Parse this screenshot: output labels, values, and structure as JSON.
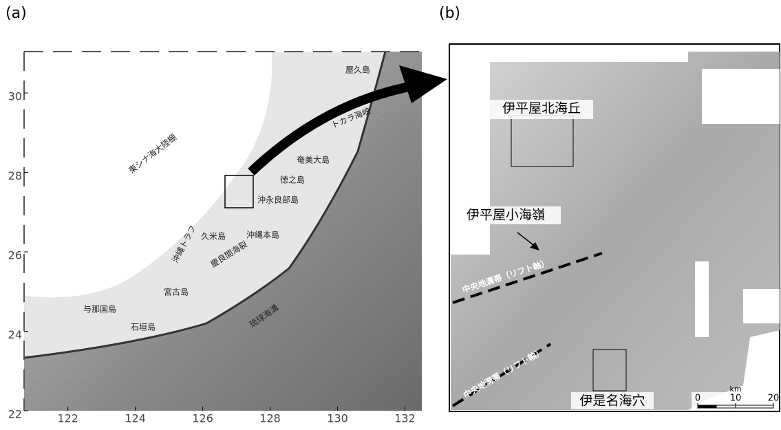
{
  "panel_a": {
    "label": "(a)",
    "xlim": [
      120.7,
      132.5
    ],
    "ylim": [
      22,
      31.04
    ],
    "xticks": [
      122,
      124,
      126,
      128,
      130,
      132
    ],
    "yticks": [
      22,
      24,
      26,
      28,
      30
    ],
    "place_names": [
      "屋久島",
      "トカラ海峡",
      "東シナ海大陸棚",
      "奄美大島",
      "徳之島",
      "沖永良部島",
      "沖縄トラフ",
      "久米島",
      "沖縄本島",
      "慶良間海裂",
      "宮古島",
      "与那国島",
      "石垣島",
      "琉球海溝"
    ]
  },
  "panel_b": {
    "label": "(b)",
    "place_names": [
      "伊平屋北海丘",
      "伊平屋小海嶺",
      "中央地溝帯（リフト軸）",
      "中央地溝帯（リフト軸）",
      "伊是名海穴"
    ],
    "scale": {
      "unit": "km",
      "ticks": [
        0,
        10,
        20
      ]
    }
  }
}
